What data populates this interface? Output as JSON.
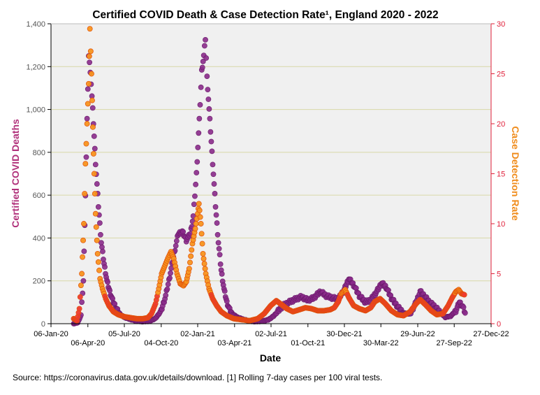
{
  "chart_data": {
    "type": "scatter",
    "title": "Certified COVID Death & Case Detection Rate¹, England 2020 - 2022",
    "xlabel": "Date",
    "ylabel_left": "Certified COVID Deaths",
    "ylabel_right": "Case Detection Rate",
    "source_note": "Source: https://coronavirus.data.gov.uk/details/download. [1] Rolling 7-day cases per 100 viral tests.",
    "x_ticks_upper": [
      "06-Jan-20",
      "05-Jul-20",
      "02-Jan-21",
      "02-Jul-21",
      "30-Dec-21",
      "29-Jun-22",
      "27-Dec-22"
    ],
    "x_ticks_lower": [
      "06-Apr-20",
      "04-Oct-20",
      "03-Apr-21",
      "01-Oct-21",
      "30-Mar-22",
      "27-Sep-22"
    ],
    "x_tick_dates": [
      "2020-01-06",
      "2020-04-06",
      "2020-07-05",
      "2020-10-04",
      "2021-01-02",
      "2021-04-03",
      "2021-07-02",
      "2021-10-01",
      "2021-12-30",
      "2022-03-30",
      "2022-06-29",
      "2022-09-27",
      "2022-12-27"
    ],
    "ylim_left": [
      0,
      1400
    ],
    "yticks_left": [
      "0",
      "200",
      "400",
      "600",
      "800",
      "1,000",
      "1,200",
      "1,400"
    ],
    "ylim_right": [
      0,
      30
    ],
    "yticks_right": [
      "0",
      "5",
      "10",
      "15",
      "20",
      "25",
      "30"
    ],
    "gridlines": "horizontal",
    "colors": {
      "deaths": "#8a2a8a",
      "deaths_stroke": "#6a1a6a",
      "cases": "#f7931e",
      "cases_stroke": "#e0500a",
      "cases_low": "#ee3b2e",
      "plot_bg": "#f0f0f0",
      "grid": "#d8d8a8",
      "left_axis": "#b0307a",
      "right_axis": "#e0203a"
    },
    "series": [
      {
        "name": "Certified COVID Deaths",
        "axis": "left",
        "points": [
          [
            "2020-03-02",
            0
          ],
          [
            "2020-03-12",
            5
          ],
          [
            "2020-03-20",
            40
          ],
          [
            "2020-03-26",
            200
          ],
          [
            "2020-03-31",
            600
          ],
          [
            "2020-04-04",
            950
          ],
          [
            "2020-04-08",
            1250
          ],
          [
            "2020-04-12",
            1180
          ],
          [
            "2020-04-18",
            1000
          ],
          [
            "2020-04-25",
            750
          ],
          [
            "2020-05-02",
            550
          ],
          [
            "2020-05-09",
            380
          ],
          [
            "2020-05-16",
            280
          ],
          [
            "2020-05-23",
            200
          ],
          [
            "2020-05-30",
            150
          ],
          [
            "2020-06-06",
            110
          ],
          [
            "2020-06-13",
            80
          ],
          [
            "2020-06-20",
            55
          ],
          [
            "2020-06-27",
            40
          ],
          [
            "2020-07-05",
            30
          ],
          [
            "2020-07-20",
            20
          ],
          [
            "2020-08-05",
            12
          ],
          [
            "2020-08-20",
            10
          ],
          [
            "2020-09-05",
            12
          ],
          [
            "2020-09-20",
            25
          ],
          [
            "2020-10-04",
            60
          ],
          [
            "2020-10-15",
            130
          ],
          [
            "2020-10-25",
            220
          ],
          [
            "2020-11-05",
            330
          ],
          [
            "2020-11-15",
            420
          ],
          [
            "2020-11-25",
            430
          ],
          [
            "2020-12-05",
            390
          ],
          [
            "2020-12-15",
            420
          ],
          [
            "2020-12-22",
            500
          ],
          [
            "2020-12-30",
            700
          ],
          [
            "2021-01-06",
            950
          ],
          [
            "2021-01-12",
            1180
          ],
          [
            "2021-01-17",
            1250
          ],
          [
            "2021-01-21",
            1330
          ],
          [
            "2021-01-25",
            1150
          ],
          [
            "2021-02-01",
            950
          ],
          [
            "2021-02-08",
            750
          ],
          [
            "2021-02-15",
            550
          ],
          [
            "2021-02-22",
            380
          ],
          [
            "2021-03-01",
            250
          ],
          [
            "2021-03-08",
            160
          ],
          [
            "2021-03-15",
            100
          ],
          [
            "2021-03-22",
            65
          ],
          [
            "2021-03-29",
            45
          ],
          [
            "2021-04-10",
            30
          ],
          [
            "2021-04-25",
            20
          ],
          [
            "2021-05-10",
            12
          ],
          [
            "2021-05-25",
            10
          ],
          [
            "2021-06-10",
            12
          ],
          [
            "2021-06-25",
            18
          ],
          [
            "2021-07-08",
            35
          ],
          [
            "2021-07-20",
            60
          ],
          [
            "2021-08-01",
            85
          ],
          [
            "2021-08-15",
            100
          ],
          [
            "2021-09-01",
            115
          ],
          [
            "2021-09-15",
            125
          ],
          [
            "2021-10-01",
            110
          ],
          [
            "2021-10-15",
            120
          ],
          [
            "2021-11-01",
            150
          ],
          [
            "2021-11-15",
            130
          ],
          [
            "2021-12-01",
            120
          ],
          [
            "2021-12-15",
            115
          ],
          [
            "2021-12-30",
            160
          ],
          [
            "2022-01-10",
            210
          ],
          [
            "2022-01-22",
            180
          ],
          [
            "2022-02-05",
            130
          ],
          [
            "2022-02-20",
            100
          ],
          [
            "2022-03-05",
            110
          ],
          [
            "2022-03-20",
            150
          ],
          [
            "2022-04-01",
            190
          ],
          [
            "2022-04-12",
            170
          ],
          [
            "2022-04-25",
            120
          ],
          [
            "2022-05-10",
            80
          ],
          [
            "2022-05-25",
            50
          ],
          [
            "2022-06-10",
            45
          ],
          [
            "2022-06-25",
            100
          ],
          [
            "2022-07-05",
            150
          ],
          [
            "2022-07-15",
            130
          ],
          [
            "2022-07-28",
            100
          ],
          [
            "2022-08-10",
            80
          ],
          [
            "2022-08-25",
            50
          ],
          [
            "2022-09-05",
            30
          ],
          [
            "2022-09-18",
            35
          ],
          [
            "2022-10-01",
            60
          ],
          [
            "2022-10-10",
            100
          ],
          [
            "2022-10-18",
            80
          ],
          [
            "2022-10-24",
            50
          ]
        ]
      },
      {
        "name": "Case Detection Rate",
        "axis": "right",
        "points": [
          [
            "2020-03-02",
            0.5
          ],
          [
            "2020-03-10",
            0.3
          ],
          [
            "2020-03-16",
            1.5
          ],
          [
            "2020-03-22",
            5
          ],
          [
            "2020-03-27",
            10
          ],
          [
            "2020-03-31",
            16
          ],
          [
            "2020-04-04",
            20
          ],
          [
            "2020-04-08",
            24
          ],
          [
            "2020-04-11",
            29.5
          ],
          [
            "2020-04-15",
            25
          ],
          [
            "2020-04-20",
            17
          ],
          [
            "2020-04-25",
            11
          ],
          [
            "2020-04-30",
            7
          ],
          [
            "2020-05-06",
            4.5
          ],
          [
            "2020-05-12",
            3.5
          ],
          [
            "2020-05-20",
            2.5
          ],
          [
            "2020-05-28",
            1.8
          ],
          [
            "2020-06-08",
            1.2
          ],
          [
            "2020-06-20",
            0.9
          ],
          [
            "2020-07-05",
            0.7
          ],
          [
            "2020-07-20",
            0.6
          ],
          [
            "2020-08-05",
            0.5
          ],
          [
            "2020-08-20",
            0.5
          ],
          [
            "2020-09-01",
            0.6
          ],
          [
            "2020-09-10",
            1.0
          ],
          [
            "2020-09-20",
            2.0
          ],
          [
            "2020-09-28",
            3.5
          ],
          [
            "2020-10-05",
            5
          ],
          [
            "2020-10-12",
            5.7
          ],
          [
            "2020-10-20",
            6.5
          ],
          [
            "2020-10-28",
            7.2
          ],
          [
            "2020-11-04",
            6.5
          ],
          [
            "2020-11-12",
            5.0
          ],
          [
            "2020-11-20",
            4.0
          ],
          [
            "2020-11-28",
            3.8
          ],
          [
            "2020-12-05",
            4.2
          ],
          [
            "2020-12-12",
            5.5
          ],
          [
            "2020-12-20",
            8.0
          ],
          [
            "2020-12-27",
            9.5
          ],
          [
            "2021-01-02",
            11
          ],
          [
            "2021-01-05",
            12
          ],
          [
            "2021-01-10",
            10
          ],
          [
            "2021-01-15",
            7
          ],
          [
            "2021-01-22",
            5
          ],
          [
            "2021-01-30",
            3.5
          ],
          [
            "2021-02-08",
            2.5
          ],
          [
            "2021-02-18",
            1.8
          ],
          [
            "2021-03-01",
            1.2
          ],
          [
            "2021-03-15",
            0.8
          ],
          [
            "2021-04-01",
            0.5
          ],
          [
            "2021-04-20",
            0.4
          ],
          [
            "2021-05-10",
            0.3
          ],
          [
            "2021-05-30",
            0.5
          ],
          [
            "2021-06-15",
            1.0
          ],
          [
            "2021-07-01",
            1.8
          ],
          [
            "2021-07-15",
            2.3
          ],
          [
            "2021-07-25",
            2.0
          ],
          [
            "2021-08-10",
            1.5
          ],
          [
            "2021-08-25",
            1.2
          ],
          [
            "2021-09-10",
            1.4
          ],
          [
            "2021-09-25",
            1.6
          ],
          [
            "2021-10-10",
            1.5
          ],
          [
            "2021-10-25",
            1.3
          ],
          [
            "2021-11-10",
            1.3
          ],
          [
            "2021-11-25",
            1.4
          ],
          [
            "2021-12-05",
            1.6
          ],
          [
            "2021-12-15",
            2.2
          ],
          [
            "2021-12-22",
            3.0
          ],
          [
            "2022-01-01",
            3.4
          ],
          [
            "2022-01-10",
            2.6
          ],
          [
            "2022-01-22",
            1.8
          ],
          [
            "2022-02-05",
            1.5
          ],
          [
            "2022-02-20",
            1.3
          ],
          [
            "2022-03-05",
            1.6
          ],
          [
            "2022-03-15",
            2.2
          ],
          [
            "2022-03-28",
            2.5
          ],
          [
            "2022-04-10",
            2.0
          ],
          [
            "2022-04-25",
            1.3
          ],
          [
            "2022-05-10",
            0.9
          ],
          [
            "2022-05-25",
            0.8
          ],
          [
            "2022-06-10",
            1.2
          ],
          [
            "2022-06-25",
            2.0
          ],
          [
            "2022-07-05",
            2.4
          ],
          [
            "2022-07-18",
            1.9
          ],
          [
            "2022-08-01",
            1.3
          ],
          [
            "2022-08-15",
            0.9
          ],
          [
            "2022-08-30",
            1.0
          ],
          [
            "2022-09-12",
            1.8
          ],
          [
            "2022-09-22",
            2.6
          ],
          [
            "2022-10-01",
            3.2
          ],
          [
            "2022-10-08",
            3.4
          ],
          [
            "2022-10-15",
            3.0
          ],
          [
            "2022-10-22",
            2.9
          ]
        ]
      }
    ]
  }
}
